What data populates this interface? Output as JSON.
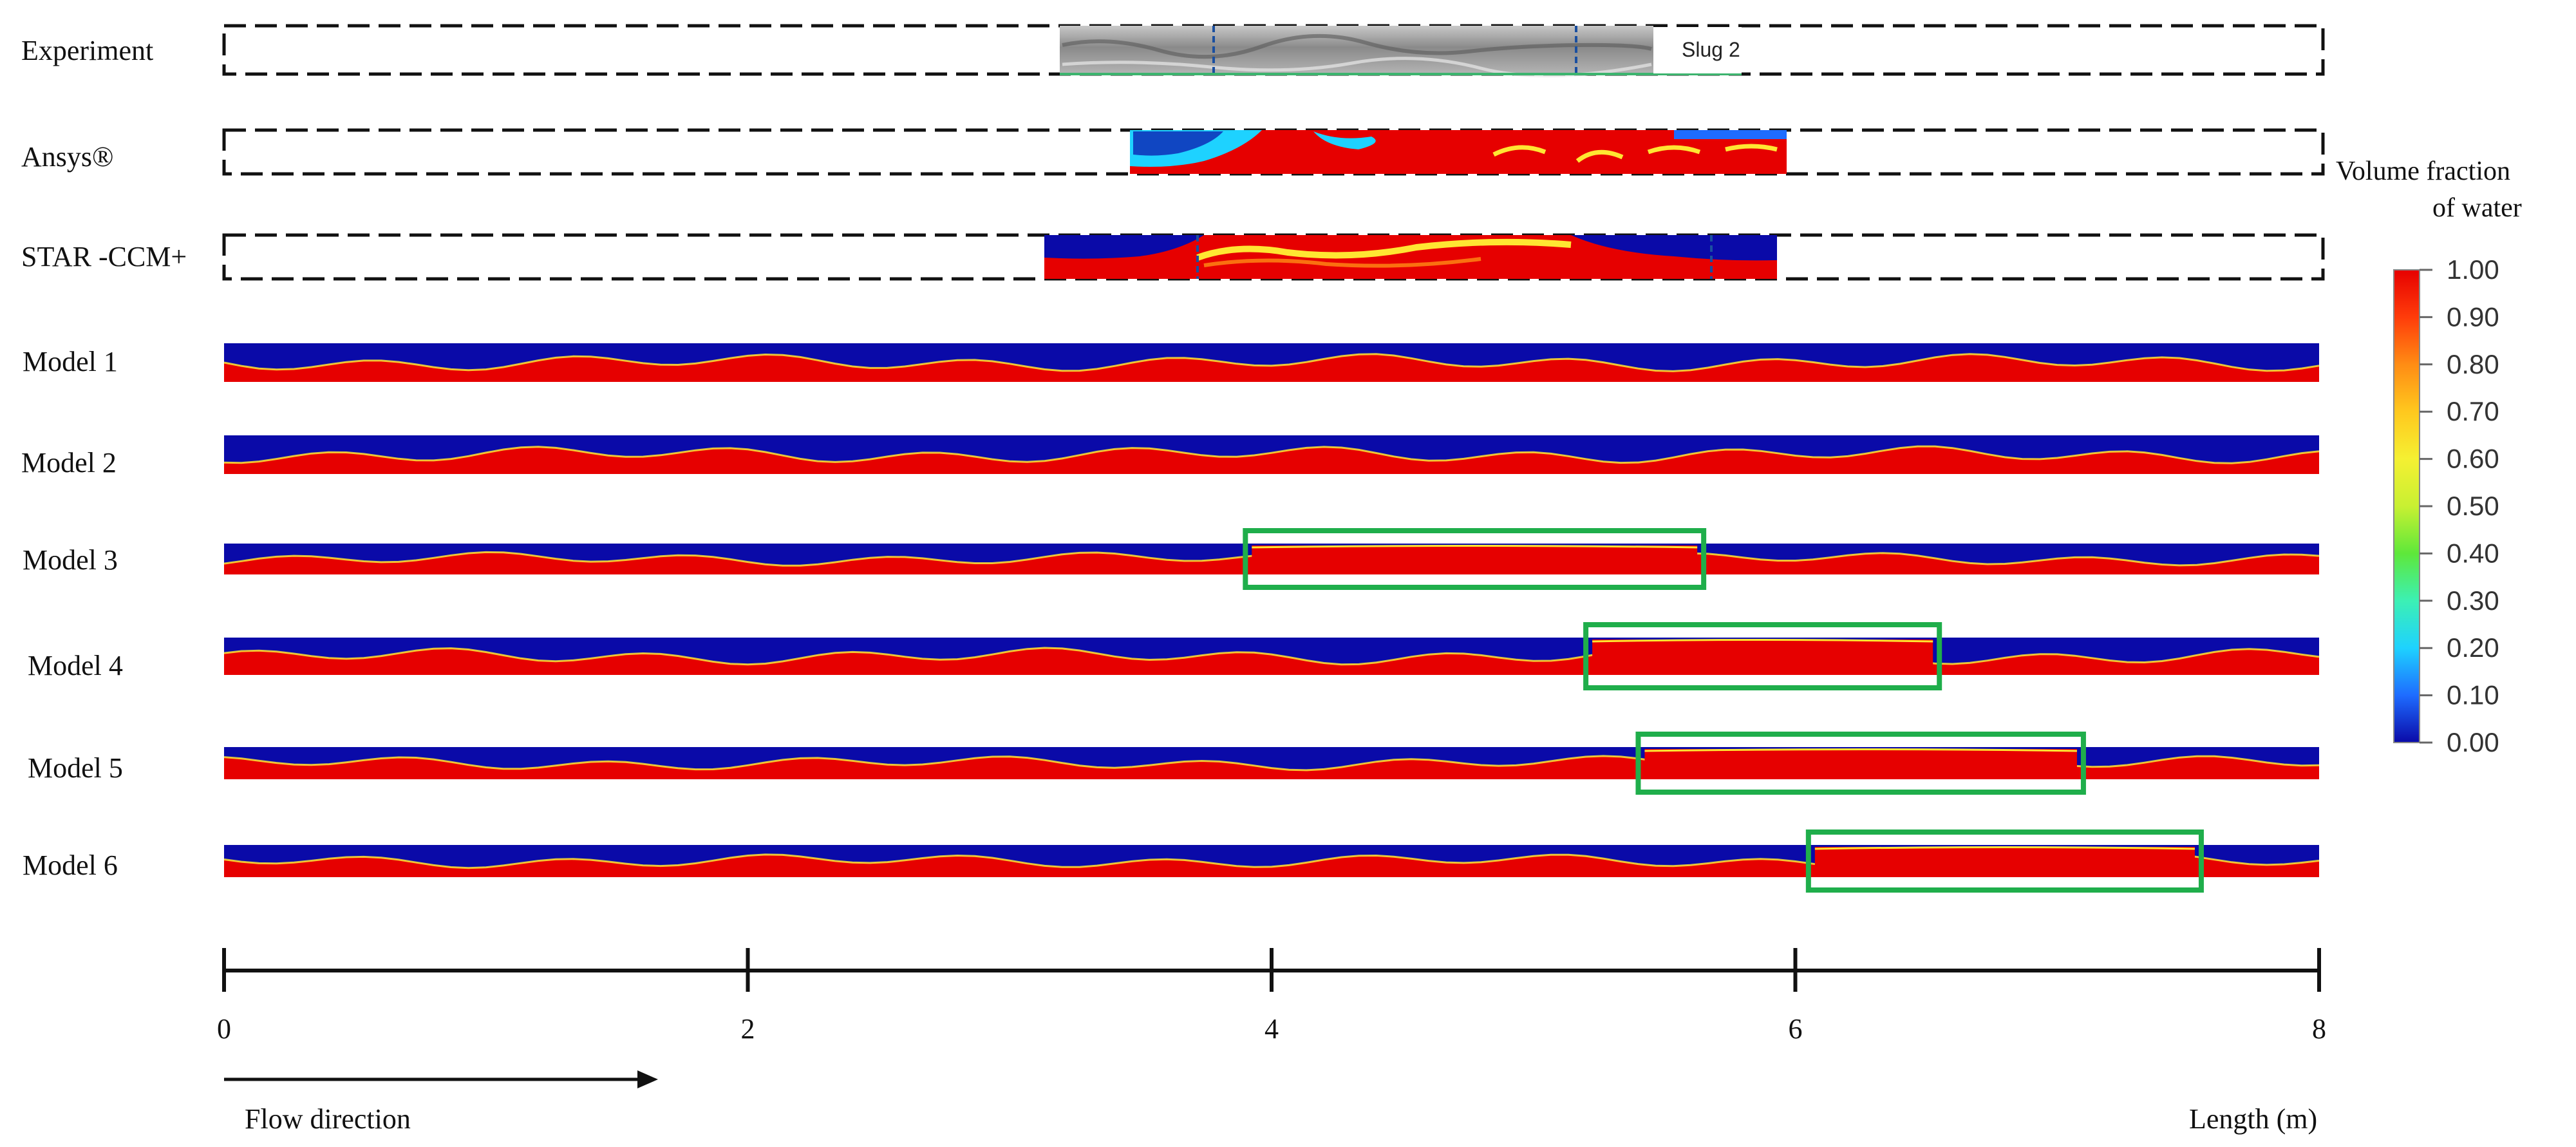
{
  "figure": {
    "rows": [
      {
        "label": "Experiment",
        "kind": "experiment",
        "slug_label": "Slug 2"
      },
      {
        "label": "Ansys®",
        "kind": "cfd"
      },
      {
        "label": "STAR -CCM+",
        "kind": "cfd"
      },
      {
        "label": "Model 1",
        "kind": "model",
        "highlight": null
      },
      {
        "label": "Model 2",
        "kind": "model",
        "highlight": null
      },
      {
        "label": "Model 3",
        "kind": "model",
        "highlight": [
          3.9,
          5.65
        ]
      },
      {
        "label": "Model 4",
        "kind": "model",
        "highlight": [
          5.2,
          6.55
        ]
      },
      {
        "label": "Model 5",
        "kind": "model",
        "highlight": [
          5.4,
          7.1
        ]
      },
      {
        "label": "Model 6",
        "kind": "model",
        "highlight": [
          6.05,
          7.55
        ]
      }
    ],
    "axis": {
      "ticks": [
        0,
        2,
        4,
        6,
        8
      ],
      "tick_labels": [
        "0",
        "2",
        "4",
        "6",
        "8"
      ],
      "xlim": [
        0,
        8
      ],
      "xlabel": "Length (m)"
    },
    "flow_direction": "Flow direction",
    "colorbar": {
      "title_line1": "Volume fraction",
      "title_line2": "of water",
      "ticks": [
        "1.00",
        "0.90",
        "0.80",
        "0.70",
        "0.60",
        "0.50",
        "0.40",
        "0.30",
        "0.20",
        "0.10",
        "0.00"
      ],
      "colors": [
        "#0a0aa8",
        "#1e6cff",
        "#1ed2ff",
        "#3cf0b4",
        "#5ee83a",
        "#c8f032",
        "#f5f032",
        "#ffc81e",
        "#ff8c14",
        "#ff3c0a",
        "#e60000"
      ]
    },
    "colors": {
      "water": "#e60000",
      "gas": "#0a0aa8",
      "interface": "#ffe632",
      "highlight": "#1fae4b"
    }
  }
}
